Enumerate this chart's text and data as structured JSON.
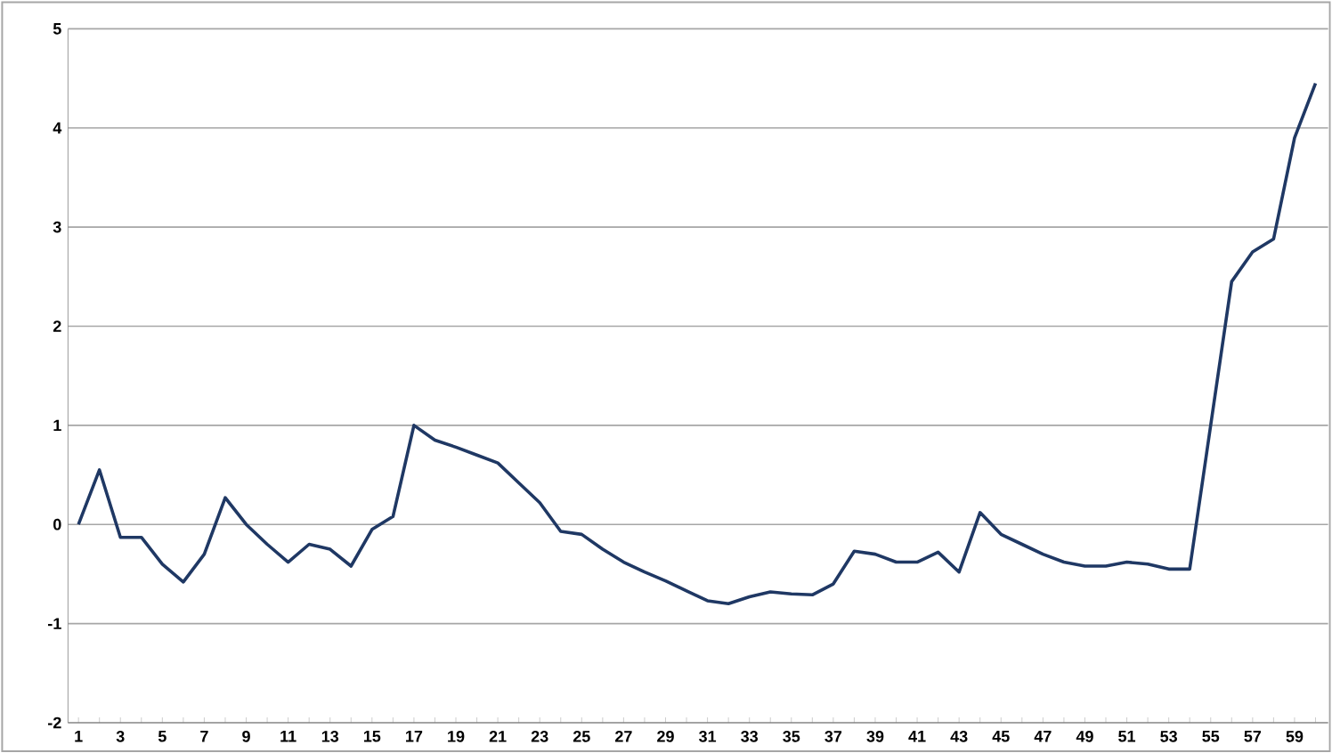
{
  "chart_data": {
    "type": "line",
    "categories": [
      "1",
      null,
      "3",
      null,
      "5",
      null,
      "7",
      null,
      "9",
      null,
      "11",
      null,
      "13",
      null,
      "15",
      null,
      "17",
      null,
      "19",
      null,
      "21",
      null,
      "23",
      null,
      "25",
      null,
      "27",
      null,
      "29",
      null,
      "31",
      null,
      "33",
      null,
      "35",
      null,
      "37",
      null,
      "39",
      null,
      "41",
      null,
      "43",
      null,
      "45",
      null,
      "47",
      null,
      "49",
      null,
      "51",
      null,
      "53",
      null,
      "55",
      null,
      "57",
      null,
      "59",
      null
    ],
    "series": [
      {
        "color": "#1f3864",
        "values": [
          0,
          0.55,
          -0.13,
          -0.13,
          -0.4,
          -0.58,
          -0.3,
          0.27,
          0.0,
          -0.2,
          -0.38,
          -0.2,
          -0.25,
          -0.42,
          -0.05,
          0.08,
          1.0,
          0.85,
          0.78,
          0.7,
          0.62,
          0.42,
          0.22,
          -0.07,
          -0.1,
          -0.25,
          -0.38,
          -0.48,
          -0.57,
          -0.67,
          -0.77,
          -0.8,
          -0.73,
          -0.68,
          -0.7,
          -0.71,
          -0.6,
          -0.27,
          -0.3,
          -0.38,
          -0.38,
          -0.28,
          -0.48,
          0.12,
          -0.1,
          -0.2,
          -0.3,
          -0.38,
          -0.42,
          -0.42,
          -0.38,
          -0.4,
          -0.45,
          -0.45,
          1.0,
          2.45,
          2.75,
          2.88,
          3.9,
          4.45
        ]
      }
    ],
    "ylim": [
      -2,
      5
    ],
    "yticks": [
      -2,
      -1,
      0,
      1,
      2,
      3,
      4,
      5
    ],
    "grid": "y",
    "marker": "none",
    "line_style": "solid"
  }
}
